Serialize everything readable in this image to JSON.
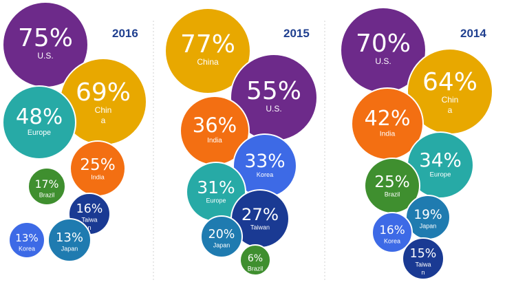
{
  "colors": {
    "purple": "#6d2a8a",
    "gold": "#e8a800",
    "teal": "#27aaa6",
    "orange": "#f36f12",
    "green": "#3f8f2f",
    "navy": "#1a3a93",
    "royal": "#3d6ae6",
    "steel": "#1f7bb0",
    "year_text": "#1f3f8f"
  },
  "chart_data": [
    {
      "type": "bubble",
      "title": "2016",
      "series": [
        {
          "region": "U.S.",
          "label_lines": [
            "U.S."
          ],
          "value": 75,
          "text": "75%",
          "color": "purple"
        },
        {
          "region": "China",
          "label_lines": [
            "Chin",
            "a"
          ],
          "value": 69,
          "text": "69%",
          "color": "gold"
        },
        {
          "region": "Europe",
          "label_lines": [
            "Europe"
          ],
          "value": 48,
          "text": "48%",
          "color": "teal"
        },
        {
          "region": "India",
          "label_lines": [
            "India"
          ],
          "value": 25,
          "text": "25%",
          "color": "orange"
        },
        {
          "region": "Brazil",
          "label_lines": [
            "Brazil"
          ],
          "value": 17,
          "text": "17%",
          "color": "green"
        },
        {
          "region": "Taiwan",
          "label_lines": [
            "Taiwa",
            "n"
          ],
          "value": 16,
          "text": "16%",
          "color": "navy"
        },
        {
          "region": "Korea",
          "label_lines": [
            "Korea"
          ],
          "value": 13,
          "text": "13%",
          "color": "royal"
        },
        {
          "region": "Japan",
          "label_lines": [
            "Japan"
          ],
          "value": 13,
          "text": "13%",
          "color": "steel"
        }
      ]
    },
    {
      "type": "bubble",
      "title": "2015",
      "series": [
        {
          "region": "China",
          "label_lines": [
            "China"
          ],
          "value": 77,
          "text": "77%",
          "color": "gold"
        },
        {
          "region": "U.S.",
          "label_lines": [
            "U.S."
          ],
          "value": 55,
          "text": "55%",
          "color": "purple"
        },
        {
          "region": "India",
          "label_lines": [
            "India"
          ],
          "value": 36,
          "text": "36%",
          "color": "orange"
        },
        {
          "region": "Korea",
          "label_lines": [
            "Korea"
          ],
          "value": 33,
          "text": "33%",
          "color": "royal"
        },
        {
          "region": "Europe",
          "label_lines": [
            "Europe"
          ],
          "value": 31,
          "text": "31%",
          "color": "teal"
        },
        {
          "region": "Taiwan",
          "label_lines": [
            "Taiwan"
          ],
          "value": 27,
          "text": "27%",
          "color": "navy"
        },
        {
          "region": "Japan",
          "label_lines": [
            "Japan"
          ],
          "value": 20,
          "text": "20%",
          "color": "steel"
        },
        {
          "region": "Brazil",
          "label_lines": [
            "Brazil"
          ],
          "value": 6,
          "text": "6%",
          "color": "green"
        }
      ]
    },
    {
      "type": "bubble",
      "title": "2014",
      "series": [
        {
          "region": "U.S.",
          "label_lines": [
            "U.S."
          ],
          "value": 70,
          "text": "70%",
          "color": "purple"
        },
        {
          "region": "China",
          "label_lines": [
            "Chin",
            "a"
          ],
          "value": 64,
          "text": "64%",
          "color": "gold"
        },
        {
          "region": "India",
          "label_lines": [
            "India"
          ],
          "value": 42,
          "text": "42%",
          "color": "orange"
        },
        {
          "region": "Europe",
          "label_lines": [
            "Europe"
          ],
          "value": 34,
          "text": "34%",
          "color": "teal"
        },
        {
          "region": "Brazil",
          "label_lines": [
            "Brazil"
          ],
          "value": 25,
          "text": "25%",
          "color": "green"
        },
        {
          "region": "Japan",
          "label_lines": [
            "Japan"
          ],
          "value": 19,
          "text": "19%",
          "color": "steel"
        },
        {
          "region": "Korea",
          "label_lines": [
            "Korea"
          ],
          "value": 16,
          "text": "16%",
          "color": "royal"
        },
        {
          "region": "Taiwan",
          "label_lines": [
            "Taiwa",
            "n"
          ],
          "value": 15,
          "text": "15%",
          "color": "navy"
        }
      ]
    }
  ]
}
